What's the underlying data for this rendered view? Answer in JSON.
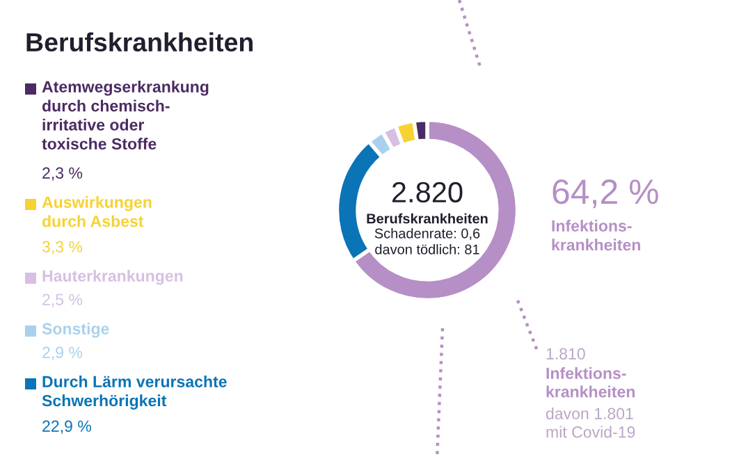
{
  "chart_data": {
    "type": "donut",
    "title": "Berufskrankheiten",
    "categories": [
      "Infektions-\nkrankheiten",
      "Durch Lärm verursachte\nSchwerhörigkeit",
      "Sonstige",
      "Hauterkrankungen",
      "Auswirkungen\ndurch Asbest",
      "Atemwegserkrankung\ndurch chemisch-\nirritative oder\ntoxische Stoffe"
    ],
    "values": [
      64.2,
      22.9,
      2.9,
      2.5,
      3.3,
      2.3
    ],
    "value_labels": [
      "64,2 %",
      "22,9 %",
      "2,9 %",
      "2,5 %",
      "3,3 %",
      "2,3 %"
    ],
    "colors": [
      "#b68fc6",
      "#0a74b6",
      "#a9d1ee",
      "#d5c0e2",
      "#f6d233",
      "#4b2b63"
    ],
    "annotations": [
      "2.820",
      "Berufskrankheiten",
      "Schadenrate: 0,6\ndavon tödlich: 81",
      "1.810",
      "Infektions-\nkrankheiten",
      "davon 1.801\nmit Covid-19"
    ],
    "legend": "left"
  }
}
